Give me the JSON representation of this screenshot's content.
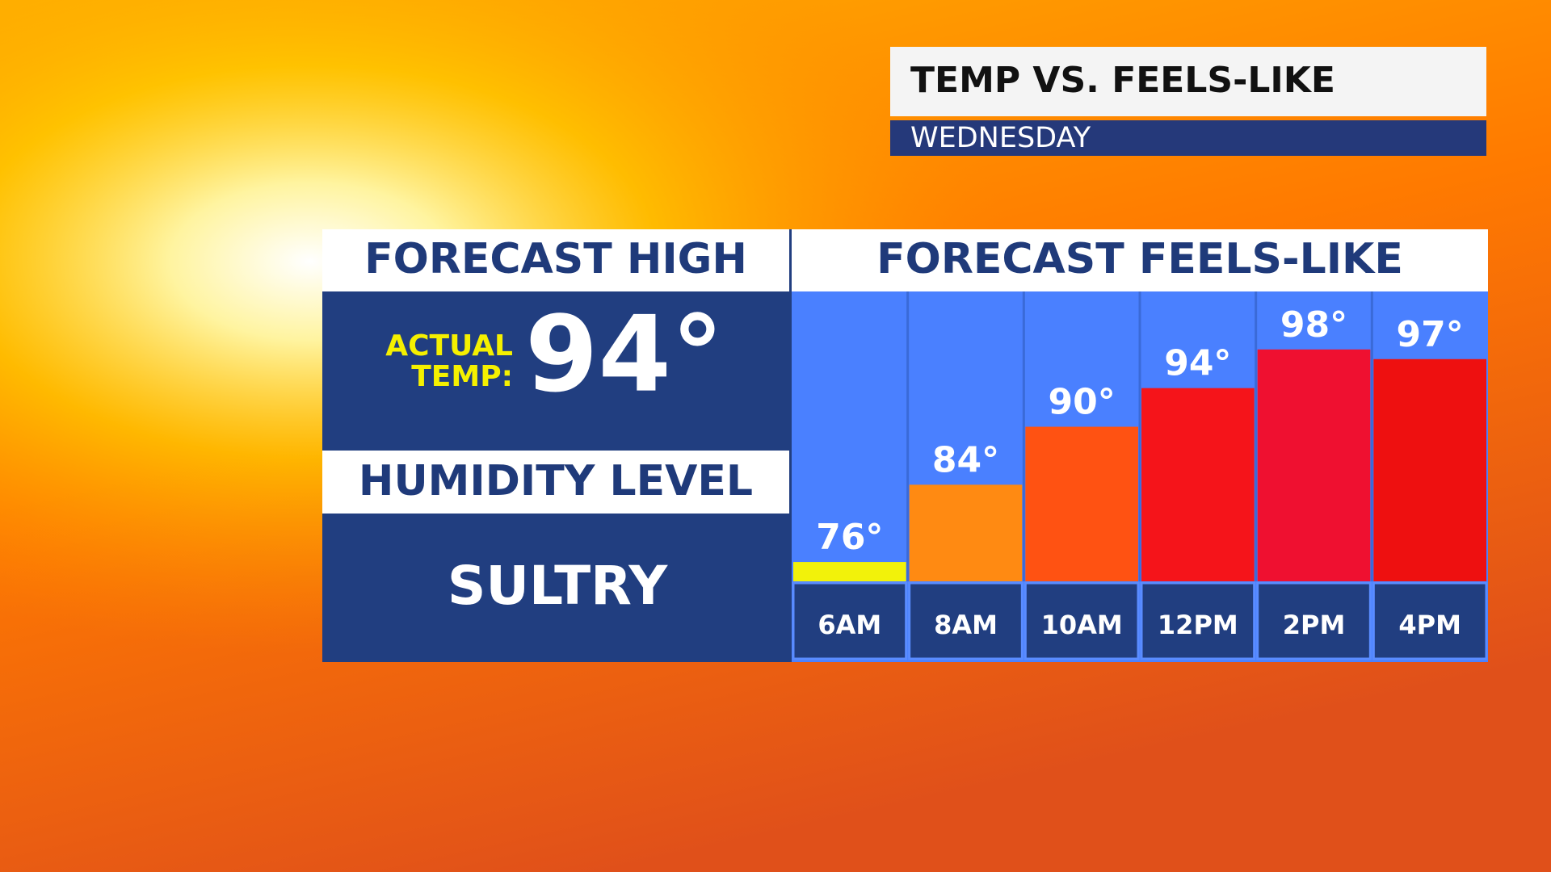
{
  "header": {
    "title": "TEMP VS. FEELS-LIKE",
    "subtitle": "WEDNESDAY"
  },
  "left": {
    "high_heading": "FORECAST HIGH",
    "actual_label": [
      "ACTUAL",
      "TEMP:"
    ],
    "actual_temp": "94°",
    "humidity_heading": "HUMIDITY LEVEL",
    "humidity_value": "SULTRY"
  },
  "chart_data": {
    "type": "bar",
    "title": "FORECAST FEELS-LIKE",
    "categories": [
      "6AM",
      "8AM",
      "10AM",
      "12PM",
      "2PM",
      "4PM"
    ],
    "values": [
      76,
      84,
      90,
      94,
      98,
      97
    ],
    "value_labels": [
      "76°",
      "84°",
      "90°",
      "94°",
      "98°",
      "97°"
    ],
    "colors": [
      "#f2f20a",
      "#ff8a12",
      "#ff5212",
      "#f5141a",
      "#ef1030",
      "#ee1010"
    ],
    "ylim": [
      74,
      104
    ]
  }
}
